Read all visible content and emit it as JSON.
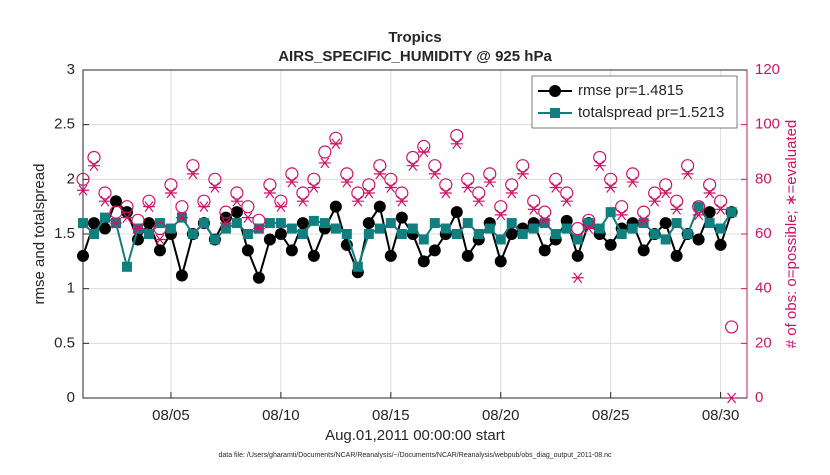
{
  "chart_data": {
    "type": "line",
    "title": "Tropics",
    "subtitle": "AIRS_SPECIFIC_HUMIDITY @ 925 hPa",
    "ylabel": "rmse and totalspread",
    "y2label": "# of obs: o=possible; ∗=evaluated",
    "xlabel": "Aug.01,2011 00:00:00 start",
    "footnote": "data file: /Users/gharamti/Documents/NCAR/Reanalysis/~/Documents/NCAR/Reanalysis/webpub/obs_diag_output_2011-08.nc",
    "x": [
      0,
      0.5,
      1,
      1.5,
      2,
      2.5,
      3,
      3.5,
      4,
      4.5,
      5,
      5.5,
      6,
      6.5,
      7,
      7.5,
      8,
      8.5,
      9,
      9.5,
      10,
      10.5,
      11,
      11.5,
      12,
      12.5,
      13,
      13.5,
      14,
      14.5,
      15,
      15.5,
      16,
      16.5,
      17,
      17.5,
      18,
      18.5,
      19,
      19.5,
      20,
      20.5,
      21,
      21.5,
      22,
      22.5,
      23,
      23.5,
      24,
      24.5,
      25,
      25.5,
      26,
      26.5,
      27,
      27.5,
      28,
      28.5,
      29,
      29.5
    ],
    "xlim": [
      0,
      30.2
    ],
    "xticks": [
      {
        "value": 4,
        "label": "08/05"
      },
      {
        "value": 9,
        "label": "08/10"
      },
      {
        "value": 14,
        "label": "08/15"
      },
      {
        "value": 19,
        "label": "08/20"
      },
      {
        "value": 24,
        "label": "08/25"
      },
      {
        "value": 29,
        "label": "08/30"
      }
    ],
    "ylim": [
      0,
      3
    ],
    "yticks": [
      0,
      0.5,
      1,
      1.5,
      2,
      2.5,
      3
    ],
    "y2lim": [
      0,
      120
    ],
    "y2ticks": [
      0,
      20,
      40,
      60,
      80,
      100,
      120
    ],
    "grid": true,
    "legend": "upper right",
    "series": [
      {
        "name": "rmse pr=1.4815",
        "color": "#000000",
        "marker": "circle",
        "values": [
          1.3,
          1.6,
          1.55,
          1.8,
          1.7,
          1.45,
          1.6,
          1.35,
          1.5,
          1.12,
          1.5,
          1.6,
          1.45,
          1.65,
          1.7,
          1.35,
          1.1,
          1.45,
          1.5,
          1.35,
          1.6,
          1.3,
          1.55,
          1.75,
          1.4,
          1.15,
          1.6,
          1.75,
          1.3,
          1.65,
          1.5,
          1.25,
          1.35,
          1.5,
          1.7,
          1.3,
          1.45,
          1.6,
          1.25,
          1.5,
          1.55,
          1.6,
          1.35,
          1.45,
          1.62,
          1.3,
          1.6,
          1.5,
          1.4,
          1.55,
          1.6,
          1.35,
          1.5,
          1.6,
          1.3,
          1.5,
          1.45,
          1.7,
          1.4,
          1.7
        ]
      },
      {
        "name": "totalspread pr=1.5213",
        "color": "#0f7f7f",
        "marker": "square",
        "values": [
          1.6,
          1.5,
          1.65,
          1.6,
          1.2,
          1.55,
          1.5,
          1.6,
          1.55,
          1.65,
          1.5,
          1.6,
          1.45,
          1.55,
          1.6,
          1.5,
          1.55,
          1.6,
          1.6,
          1.55,
          1.5,
          1.62,
          1.6,
          1.55,
          1.5,
          1.2,
          1.5,
          1.55,
          1.6,
          1.5,
          1.55,
          1.45,
          1.6,
          1.55,
          1.5,
          1.6,
          1.5,
          1.55,
          1.45,
          1.6,
          1.5,
          1.55,
          1.6,
          1.5,
          1.55,
          1.45,
          1.6,
          1.55,
          1.7,
          1.5,
          1.55,
          1.6,
          1.5,
          1.45,
          1.6,
          1.5,
          1.75,
          1.6,
          1.55,
          1.7
        ]
      },
      {
        "color": "#cc1466",
        "marker": "open-circle",
        "axis": "y2",
        "values": [
          80,
          88,
          75,
          68,
          70,
          65,
          72,
          62,
          78,
          70,
          85,
          72,
          80,
          68,
          75,
          70,
          65,
          78,
          72,
          82,
          75,
          80,
          90,
          95,
          82,
          75,
          78,
          85,
          80,
          75,
          88,
          92,
          85,
          78,
          96,
          80,
          75,
          82,
          70,
          78,
          85,
          72,
          68,
          80,
          75,
          62,
          65,
          88,
          80,
          70,
          82,
          68,
          75,
          78,
          72,
          85,
          70,
          78,
          72,
          26
        ]
      },
      {
        "color": "#cc1466",
        "marker": "asterisk",
        "axis": "y2",
        "values": [
          76,
          85,
          72,
          64,
          66,
          62,
          70,
          58,
          75,
          66,
          82,
          70,
          77,
          64,
          72,
          66,
          62,
          75,
          70,
          79,
          72,
          77,
          86,
          93,
          79,
          72,
          75,
          82,
          77,
          72,
          85,
          90,
          82,
          75,
          93,
          77,
          72,
          79,
          67,
          75,
          82,
          69,
          65,
          77,
          72,
          44,
          62,
          85,
          77,
          67,
          79,
          65,
          72,
          75,
          69,
          82,
          67,
          75,
          69,
          0
        ]
      }
    ]
  }
}
